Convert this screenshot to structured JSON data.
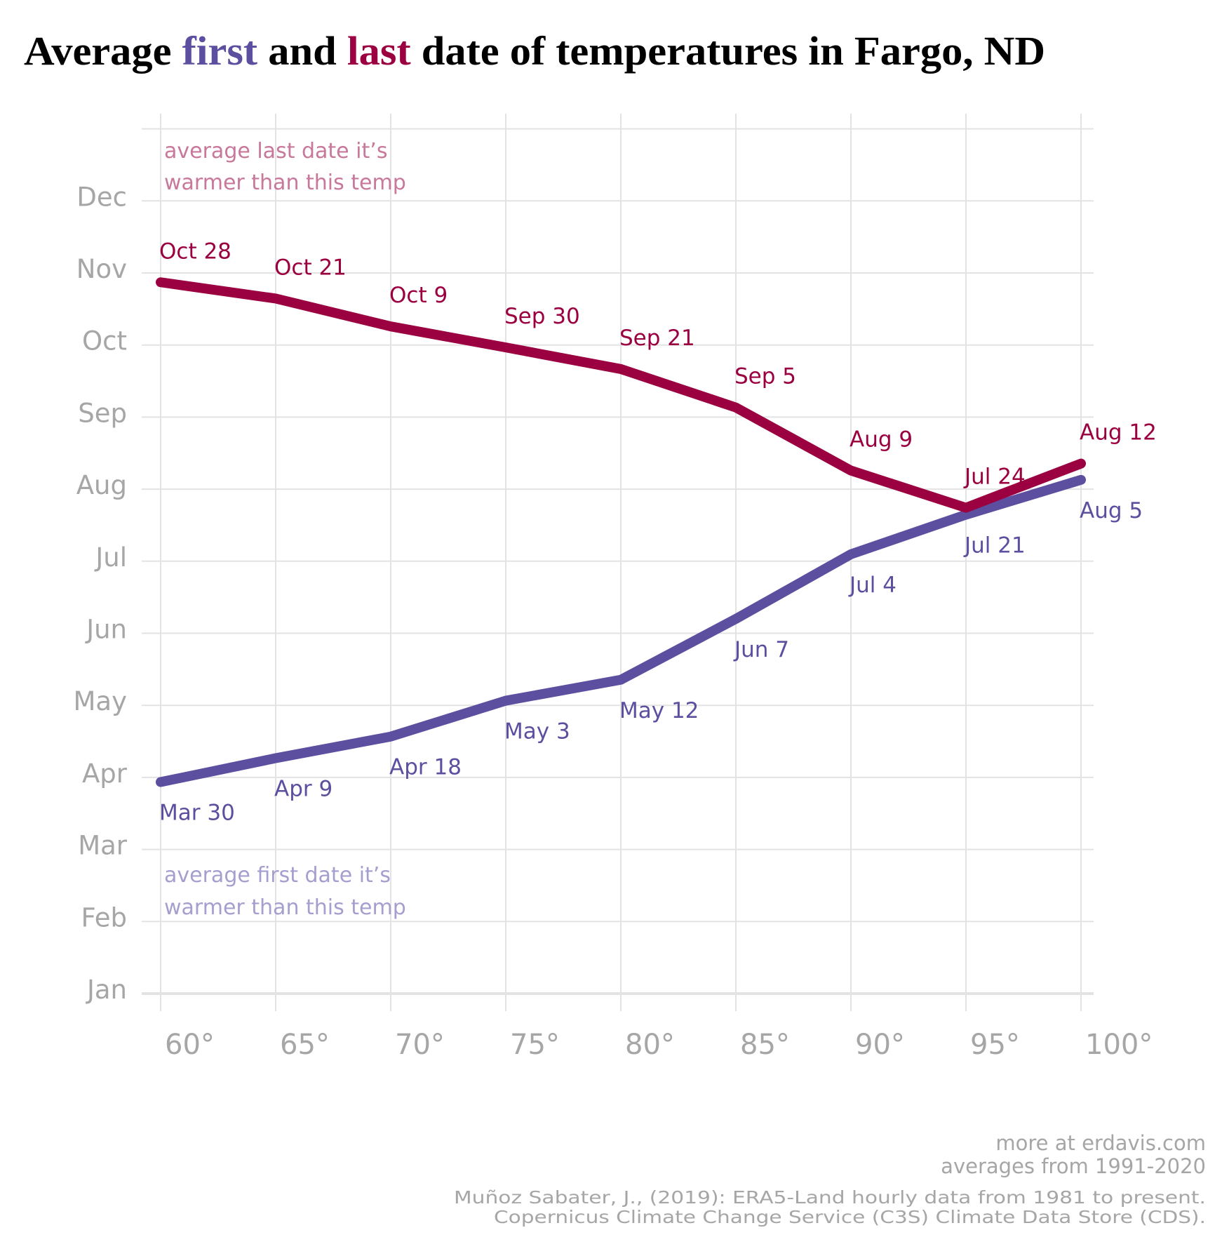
{
  "chart_data": {
    "type": "line",
    "title": {
      "parts": [
        {
          "text": "Average ",
          "role": "plain"
        },
        {
          "text": "first",
          "role": "first"
        },
        {
          "text": " and ",
          "role": "plain"
        },
        {
          "text": "last",
          "role": "last"
        },
        {
          "text": " date of temperatures in Fargo, ND",
          "role": "plain"
        }
      ]
    },
    "xlabel": "",
    "ylabel": "",
    "x": [
      60,
      65,
      70,
      75,
      80,
      85,
      90,
      95,
      100
    ],
    "x_tick_labels": [
      "60°",
      "65°",
      "70°",
      "75°",
      "80°",
      "85°",
      "90°",
      "95°",
      "100°"
    ],
    "xlim": [
      60,
      100
    ],
    "y_tick_labels": [
      "Jan",
      "Feb",
      "Mar",
      "Apr",
      "May",
      "Jun",
      "Jul",
      "Aug",
      "Sep",
      "Oct",
      "Nov",
      "Dec"
    ],
    "ylim": [
      "Jan 1",
      "Dec 31"
    ],
    "grid": true,
    "series": [
      {
        "name": "first",
        "color": "#5c4fa0",
        "values": [
          "Mar 30",
          "Apr 9",
          "Apr 18",
          "May 3",
          "May 12",
          "Jun 7",
          "Jul 4",
          "Jul 21",
          "Aug 5"
        ],
        "label_position": "below"
      },
      {
        "name": "last",
        "color": "#9b0040",
        "values": [
          "Oct 28",
          "Oct 21",
          "Oct 9",
          "Sep 30",
          "Sep 21",
          "Sep 5",
          "Aug 9",
          "Jul 24",
          "Aug 12"
        ],
        "label_position": "above"
      }
    ],
    "annotations": {
      "last": {
        "lines": [
          "average last date it’s",
          "warmer than this temp"
        ],
        "color": "#c8789a"
      },
      "first": {
        "lines": [
          "average first date it’s",
          "warmer than this temp"
        ],
        "color": "#a59fd0"
      }
    }
  },
  "footer": {
    "site": "more at erdavis.com",
    "range": "averages from 1991-2020",
    "citation_1": "Muñoz Sabater, J., (2019): ERA5-Land hourly data from 1981 to present.",
    "citation_2": "Copernicus Climate Change Service (C3S) Climate Data Store (CDS)."
  },
  "colors": {
    "first": "#5c4fa0",
    "last": "#9b0040",
    "axis_text": "#a6a6a6",
    "grid": "#e3e3e3"
  }
}
